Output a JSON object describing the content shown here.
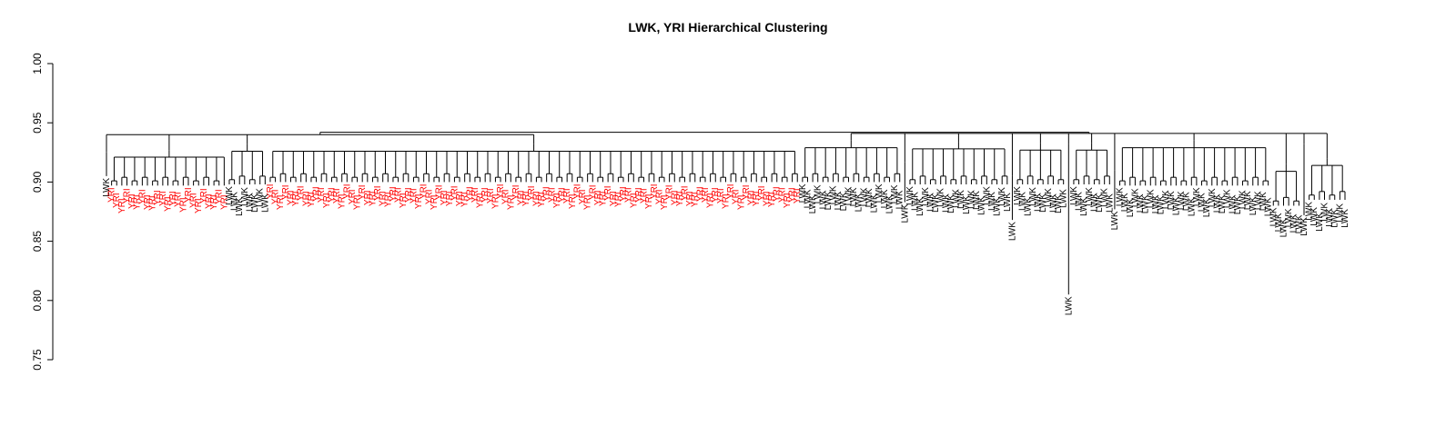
{
  "chart_data": {
    "type": "dendrogram",
    "title": "LWK, YRI Hierarchical Clustering",
    "xlabel": "",
    "ylabel": "",
    "ylim": [
      0.75,
      1.0
    ],
    "yticks": [
      0.75,
      0.8,
      0.85,
      0.9,
      0.95,
      1.0
    ],
    "ytick_labels": [
      "0.75",
      "0.80",
      "0.85",
      "0.90",
      "0.95",
      "1.00"
    ],
    "grid": false,
    "colors": {
      "YRI": "#ff0000",
      "LWK": "#000000",
      "branches": "#000000"
    },
    "groups": [
      {
        "label": "LWK",
        "count": 1,
        "leaf_height": 0.905,
        "merge_height": 0.925
      },
      {
        "label": "YRI",
        "count": 23,
        "leaf_height": 0.897,
        "merge_height": 0.927
      },
      {
        "label": "LWK",
        "count": 8,
        "leaf_height": 0.898,
        "merge_height": 0.932
      },
      {
        "label": "YRI",
        "count": 104,
        "leaf_height": 0.9,
        "merge_height": 0.932
      },
      {
        "label": "LWK",
        "count": 20,
        "leaf_height": 0.9,
        "merge_height": 0.935
      },
      {
        "label": "LWK",
        "count": 1,
        "leaf_height": 0.883,
        "merge_height": 0.917
      },
      {
        "label": "LWK",
        "count": 20,
        "leaf_height": 0.898,
        "merge_height": 0.934
      },
      {
        "label": "LWK",
        "count": 1,
        "leaf_height": 0.868,
        "merge_height": 0.905
      },
      {
        "label": "LWK",
        "count": 10,
        "leaf_height": 0.898,
        "merge_height": 0.933
      },
      {
        "label": "LWK",
        "count": 1,
        "leaf_height": 0.805,
        "merge_height": 0.932
      },
      {
        "label": "LWK",
        "count": 8,
        "leaf_height": 0.898,
        "merge_height": 0.933
      },
      {
        "label": "LWK",
        "count": 1,
        "leaf_height": 0.877,
        "merge_height": 0.91
      },
      {
        "label": "LWK",
        "count": 30,
        "leaf_height": 0.897,
        "merge_height": 0.935
      },
      {
        "label": "LWK",
        "count": 6,
        "leaf_height": 0.88,
        "merge_height": 0.915
      },
      {
        "label": "LWK",
        "count": 1,
        "leaf_height": 0.872,
        "merge_height": 0.932
      },
      {
        "label": "LWK",
        "count": 8,
        "leaf_height": 0.885,
        "merge_height": 0.92
      }
    ],
    "top_merges": [
      0.94,
      0.941,
      0.942
    ]
  }
}
